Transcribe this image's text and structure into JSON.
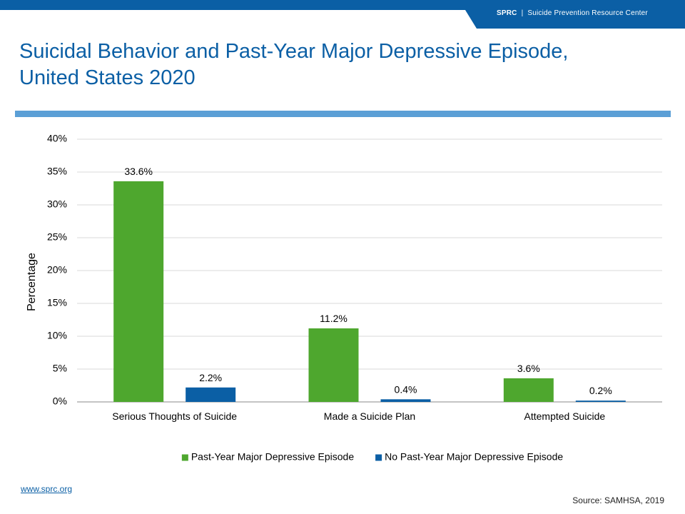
{
  "header": {
    "brand_abbr": "SPRC",
    "separator": "|",
    "brand_full": "Suicide Prevention Resource Center"
  },
  "title": {
    "line1": "Suicidal Behavior and Past-Year Major Depressive Episode,",
    "line2": "United States 2020"
  },
  "colors": {
    "brand_blue": "#0b5fa5",
    "rule_blue": "#5b9fd6",
    "green": "#4ea72e",
    "blue": "#0b5fa5"
  },
  "chart_data": {
    "type": "bar",
    "categories": [
      "Serious Thoughts of Suicide",
      "Made a Suicide Plan",
      "Attempted Suicide"
    ],
    "series": [
      {
        "name": "Past-Year Major Depressive Episode",
        "values": [
          33.6,
          11.2,
          3.6
        ],
        "labels": [
          "33.6%",
          "11.2%",
          "3.6%"
        ],
        "color": "#4ea72e"
      },
      {
        "name": "No Past-Year Major Depressive Episode",
        "values": [
          2.2,
          0.4,
          0.2
        ],
        "labels": [
          "2.2%",
          "0.4%",
          "0.2%"
        ],
        "color": "#0b5fa5"
      }
    ],
    "ylabel": "Percentage",
    "ylim": [
      0,
      40
    ],
    "yticks": [
      "0%",
      "5%",
      "10%",
      "15%",
      "20%",
      "25%",
      "30%",
      "35%",
      "40%"
    ],
    "grid": true,
    "legend_position": "bottom"
  },
  "footer": {
    "link": "www.sprc.org",
    "source": "Source: SAMHSA, 2019"
  }
}
